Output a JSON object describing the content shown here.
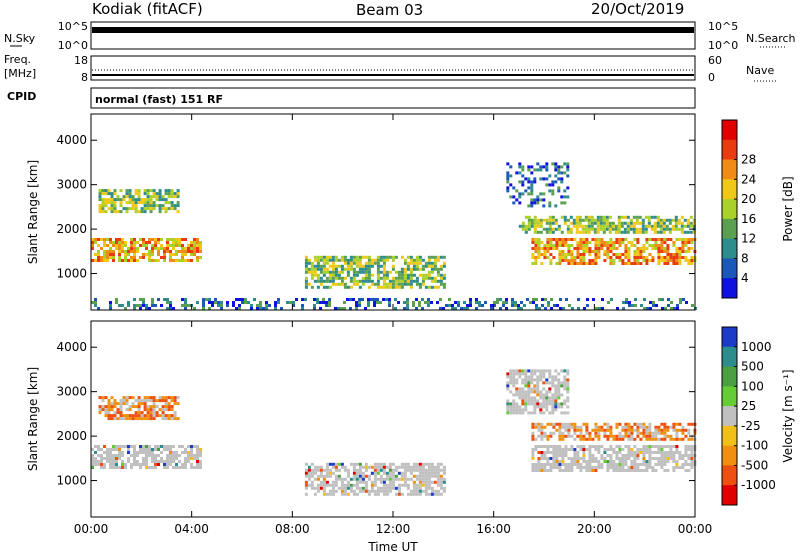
{
  "header": {
    "station": "Kodiak (fitACF)",
    "beam": "Beam 03",
    "date": "20/Oct/2019"
  },
  "strips": {
    "nsky_label": "N.Sky",
    "nsearch_label": "N.Search",
    "noise_ticks": [
      "10^5",
      "10^0"
    ],
    "freq_label": "Freq.",
    "freq_unit": "[MHz]",
    "freq_ticks": [
      "18",
      "8"
    ],
    "nave_label": "Nave",
    "nave_ticks": [
      "60",
      "0"
    ],
    "cpid_label": "CPID",
    "cpid_value": "normal (fast) 151 RF"
  },
  "chart_data": [
    {
      "type": "heatmap",
      "name": "power",
      "ylabel": "Slant Range [km]",
      "xlabel": "",
      "x_ticks": [
        "00:00",
        "04:00",
        "08:00",
        "12:00",
        "16:00",
        "20:00",
        "00:00"
      ],
      "y_ticks": [
        1000,
        2000,
        3000,
        4000
      ],
      "xlim_hours": [
        0,
        24
      ],
      "ylim_km": [
        180,
        4590
      ],
      "colorbar": {
        "label": "Power [dB]",
        "ticks": [
          "4",
          "8",
          "12",
          "16",
          "20",
          "24",
          "28"
        ],
        "colors": [
          "#1010e0",
          "#1c58b8",
          "#2e8c8c",
          "#5aa050",
          "#aad02a",
          "#f0c818",
          "#f08c14",
          "#e83c10",
          "#e00000"
        ]
      },
      "echo_regions": [
        {
          "hours": [
            0.0,
            4.3
          ],
          "km": [
            1300,
            1800
          ],
          "level": "high"
        },
        {
          "hours": [
            0.3,
            3.5
          ],
          "km": [
            2400,
            2900
          ],
          "level": "medium"
        },
        {
          "hours": [
            8.5,
            14.0
          ],
          "km": [
            700,
            1400
          ],
          "level": "medium"
        },
        {
          "hours": [
            17.5,
            24.0
          ],
          "km": [
            1200,
            1800
          ],
          "level": "high"
        },
        {
          "hours": [
            17.0,
            24.0
          ],
          "km": [
            1900,
            2300
          ],
          "level": "medium"
        },
        {
          "hours": [
            16.5,
            19.0
          ],
          "km": [
            2500,
            3500
          ],
          "level": "low"
        },
        {
          "hours": [
            0.0,
            24.0
          ],
          "km": [
            200,
            450
          ],
          "level": "low"
        }
      ]
    },
    {
      "type": "heatmap",
      "name": "velocity",
      "ylabel": "Slant Range [km]",
      "xlabel": "Time UT",
      "x_ticks": [
        "00:00",
        "04:00",
        "08:00",
        "12:00",
        "16:00",
        "20:00",
        "00:00"
      ],
      "y_ticks": [
        1000,
        2000,
        3000,
        4000
      ],
      "xlim_hours": [
        0,
        24
      ],
      "ylim_km": [
        180,
        4590
      ],
      "colorbar": {
        "label": "Velocity [m s⁻¹]",
        "ticks": [
          "1000",
          "500",
          "100",
          "25",
          "-25",
          "-100",
          "-500",
          "-1000"
        ],
        "colors": [
          "#1c3cc8",
          "#2e8c8c",
          "#4aa040",
          "#66cc33",
          "#c0c0c0",
          "#f0c018",
          "#f09010",
          "#ee5010",
          "#e00000"
        ]
      },
      "echo_regions": [
        {
          "hours": [
            0.0,
            4.3
          ],
          "km": [
            1300,
            1800
          ],
          "level": "grey"
        },
        {
          "hours": [
            0.3,
            3.5
          ],
          "km": [
            2400,
            2900
          ],
          "level": "orange"
        },
        {
          "hours": [
            8.5,
            14.0
          ],
          "km": [
            700,
            1400
          ],
          "level": "grey"
        },
        {
          "hours": [
            17.5,
            24.0
          ],
          "km": [
            1200,
            1800
          ],
          "level": "grey"
        },
        {
          "hours": [
            17.5,
            24.0
          ],
          "km": [
            1900,
            2300
          ],
          "level": "orange"
        },
        {
          "hours": [
            16.5,
            19.0
          ],
          "km": [
            2500,
            3500
          ],
          "level": "grey"
        }
      ]
    }
  ]
}
